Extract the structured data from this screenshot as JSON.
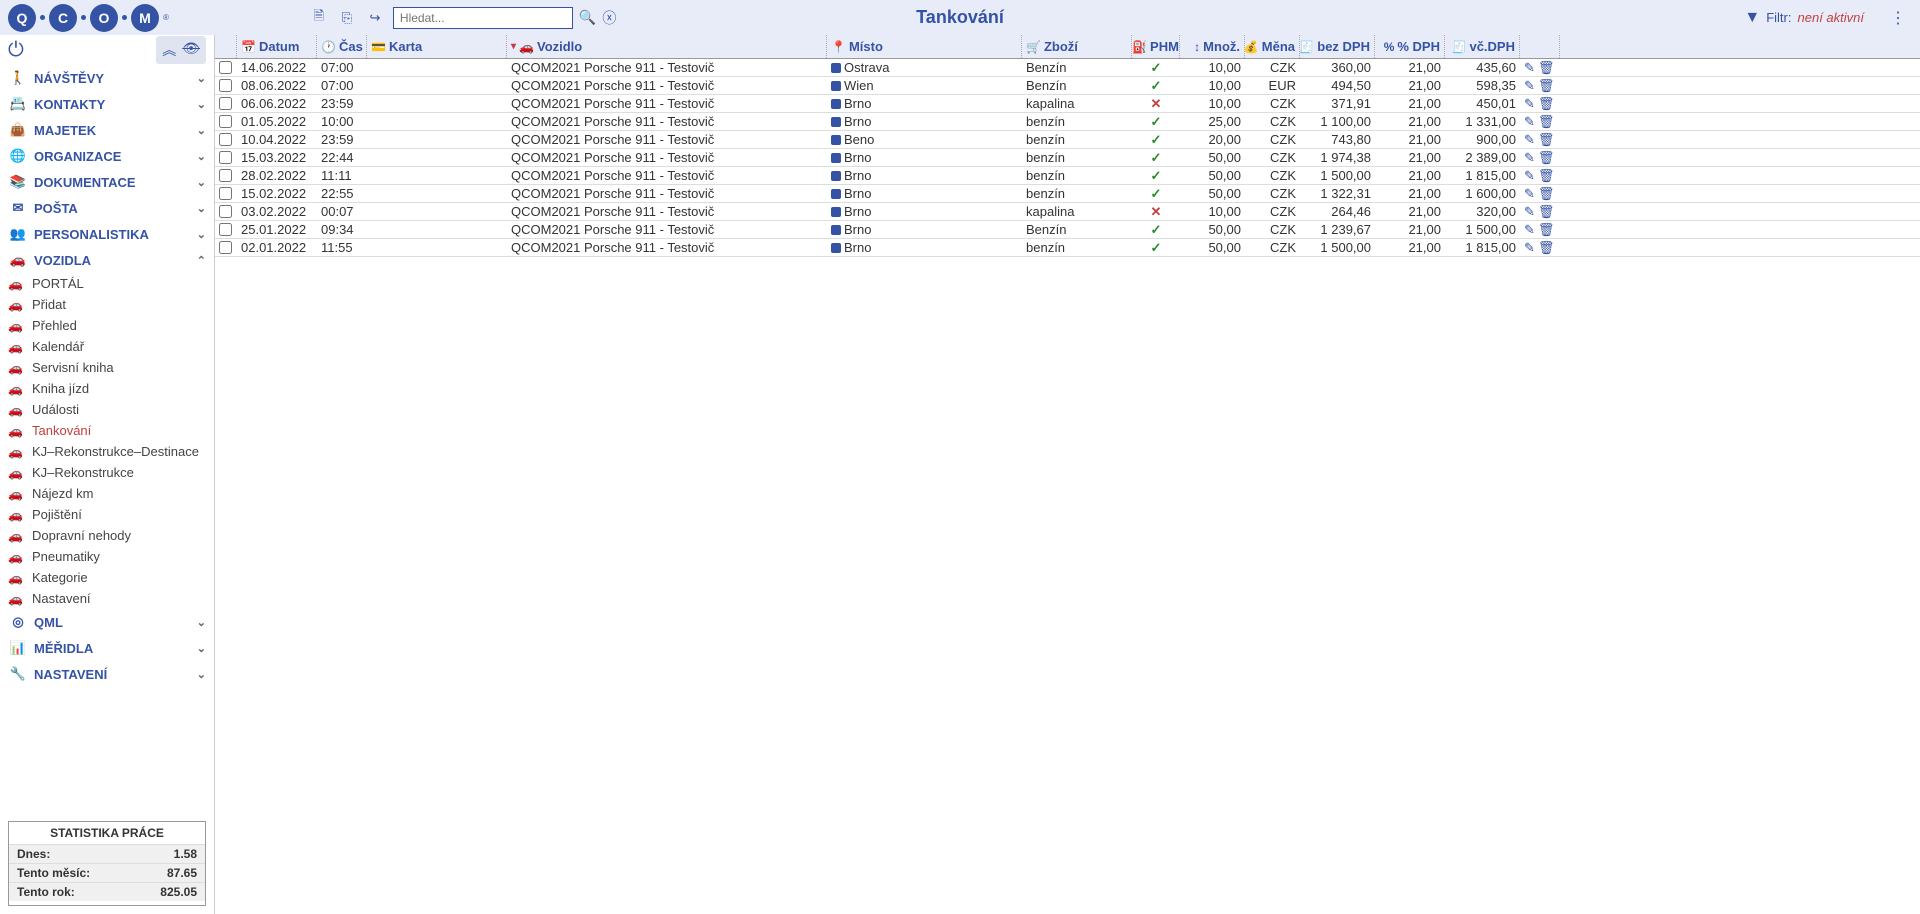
{
  "header": {
    "page_title": "Tankování",
    "search_placeholder": "Hledat...",
    "filter_label": "Filtr:",
    "filter_status": "není aktivní"
  },
  "sidebar": {
    "sections": [
      {
        "label": "NÁVŠTĚVY",
        "icon": "🚶",
        "expanded": false,
        "color": "#3553a4"
      },
      {
        "label": "KONTAKTY",
        "icon": "📇",
        "expanded": false,
        "color": "#3553a4"
      },
      {
        "label": "MAJETEK",
        "icon": "👜",
        "expanded": false,
        "color": "#b03030"
      },
      {
        "label": "ORGANIZACE",
        "icon": "🌐",
        "expanded": false,
        "color": "#3553a4"
      },
      {
        "label": "DOKUMENTACE",
        "icon": "📚",
        "expanded": false,
        "color": "#3553a4"
      },
      {
        "label": "POŠTA",
        "icon": "✉",
        "expanded": false,
        "color": "#3553a4"
      },
      {
        "label": "PERSONALISTIKA",
        "icon": "👥",
        "expanded": false,
        "color": "#3553a4"
      },
      {
        "label": "VOZIDLA",
        "icon": "🚗",
        "expanded": true,
        "color": "#888",
        "items": [
          {
            "label": "PORTÁL"
          },
          {
            "label": "Přidat"
          },
          {
            "label": "Přehled"
          },
          {
            "label": "Kalendář"
          },
          {
            "label": "Servisní kniha"
          },
          {
            "label": "Kniha jízd"
          },
          {
            "label": "Události"
          },
          {
            "label": "Tankování",
            "active": true
          },
          {
            "label": "KJ–Rekonstrukce–Destinace"
          },
          {
            "label": "KJ–Rekonstrukce"
          },
          {
            "label": "Nájezd km"
          },
          {
            "label": "Pojištění"
          },
          {
            "label": "Dopravní nehody"
          },
          {
            "label": "Pneumatiky"
          },
          {
            "label": "Kategorie"
          },
          {
            "label": "Nastavení"
          }
        ]
      },
      {
        "label": "QML",
        "icon": "◎",
        "expanded": false,
        "color": "#3553a4"
      },
      {
        "label": "MĚŘIDLA",
        "icon": "📊",
        "expanded": false,
        "color": "#c08030"
      },
      {
        "label": "NASTAVENÍ",
        "icon": "🔧",
        "expanded": false,
        "color": "#888"
      }
    ],
    "stats": {
      "title": "STATISTIKA PRÁCE",
      "rows": [
        {
          "label": "Dnes:",
          "value": "1.58"
        },
        {
          "label": "Tento měsíc:",
          "value": "87.65"
        },
        {
          "label": "Tento rok:",
          "value": "825.05"
        }
      ]
    }
  },
  "table": {
    "columns": {
      "date": "Datum",
      "time": "Čas",
      "card": "Karta",
      "vehicle": "Vozidlo",
      "place": "Místo",
      "goods": "Zboží",
      "phm": "PHM",
      "qty": "Množ.",
      "currency": "Měna",
      "novat": "bez DPH",
      "vatpct": "% DPH",
      "total": "vč.DPH"
    },
    "rows": [
      {
        "date": "14.06.2022",
        "time": "07:00",
        "vehicle": "QCOM2021 Porsche 911 - Testovič",
        "place": "Ostrava",
        "goods": "Benzín",
        "phm": true,
        "qty": "10,00",
        "curr": "CZK",
        "novat": "360,00",
        "vatpct": "21,00",
        "total": "435,60"
      },
      {
        "date": "08.06.2022",
        "time": "07:00",
        "vehicle": "QCOM2021 Porsche 911 - Testovič",
        "place": "Wien",
        "goods": "Benzín",
        "phm": true,
        "qty": "10,00",
        "curr": "EUR",
        "novat": "494,50",
        "vatpct": "21,00",
        "total": "598,35"
      },
      {
        "date": "06.06.2022",
        "time": "23:59",
        "vehicle": "QCOM2021 Porsche 911 - Testovič",
        "place": "Brno",
        "goods": "kapalina",
        "phm": false,
        "qty": "10,00",
        "curr": "CZK",
        "novat": "371,91",
        "vatpct": "21,00",
        "total": "450,01"
      },
      {
        "date": "01.05.2022",
        "time": "10:00",
        "vehicle": "QCOM2021 Porsche 911 - Testovič",
        "place": "Brno",
        "goods": "benzín",
        "phm": true,
        "qty": "25,00",
        "curr": "CZK",
        "novat": "1 100,00",
        "vatpct": "21,00",
        "total": "1 331,00"
      },
      {
        "date": "10.04.2022",
        "time": "23:59",
        "vehicle": "QCOM2021 Porsche 911 - Testovič",
        "place": "Beno",
        "goods": "benzín",
        "phm": true,
        "qty": "20,00",
        "curr": "CZK",
        "novat": "743,80",
        "vatpct": "21,00",
        "total": "900,00"
      },
      {
        "date": "15.03.2022",
        "time": "22:44",
        "vehicle": "QCOM2021 Porsche 911 - Testovič",
        "place": "Brno",
        "goods": "benzín",
        "phm": true,
        "qty": "50,00",
        "curr": "CZK",
        "novat": "1 974,38",
        "vatpct": "21,00",
        "total": "2 389,00"
      },
      {
        "date": "28.02.2022",
        "time": "11:11",
        "vehicle": "QCOM2021 Porsche 911 - Testovič",
        "place": "Brno",
        "goods": "benzín",
        "phm": true,
        "qty": "50,00",
        "curr": "CZK",
        "novat": "1 500,00",
        "vatpct": "21,00",
        "total": "1 815,00"
      },
      {
        "date": "15.02.2022",
        "time": "22:55",
        "vehicle": "QCOM2021 Porsche 911 - Testovič",
        "place": "Brno",
        "goods": "benzín",
        "phm": true,
        "qty": "50,00",
        "curr": "CZK",
        "novat": "1 322,31",
        "vatpct": "21,00",
        "total": "1 600,00"
      },
      {
        "date": "03.02.2022",
        "time": "00:07",
        "vehicle": "QCOM2021 Porsche 911 - Testovič",
        "place": "Brno",
        "goods": "kapalina",
        "phm": false,
        "qty": "10,00",
        "curr": "CZK",
        "novat": "264,46",
        "vatpct": "21,00",
        "total": "320,00"
      },
      {
        "date": "25.01.2022",
        "time": "09:34",
        "vehicle": "QCOM2021 Porsche 911 - Testovič",
        "place": "Brno",
        "goods": "Benzín",
        "phm": true,
        "qty": "50,00",
        "curr": "CZK",
        "novat": "1 239,67",
        "vatpct": "21,00",
        "total": "1 500,00"
      },
      {
        "date": "02.01.2022",
        "time": "11:55",
        "vehicle": "QCOM2021 Porsche 911 - Testovič",
        "place": "Brno",
        "goods": "benzín",
        "phm": true,
        "qty": "50,00",
        "curr": "CZK",
        "novat": "1 500,00",
        "vatpct": "21,00",
        "total": "1 815,00"
      }
    ]
  }
}
